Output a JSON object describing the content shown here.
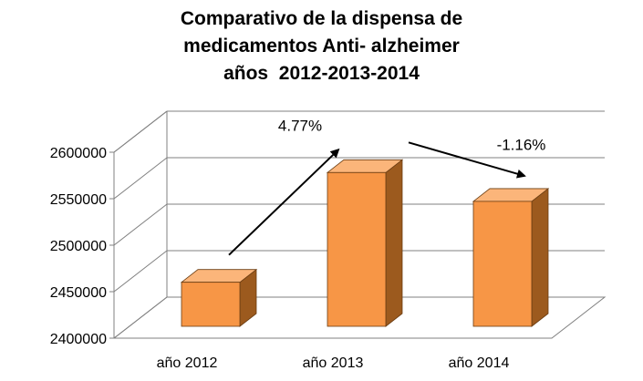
{
  "chart_data": {
    "type": "bar",
    "title_lines": [
      "Comparativo de la dispensa de",
      "medicamentos Anti- alzheimer",
      "años  2012-2013-2014"
    ],
    "categories": [
      "año 2012",
      "año 2013",
      "año 2014"
    ],
    "values": [
      2466000,
      2584000,
      2553000
    ],
    "ylim": [
      2400000,
      2600000
    ],
    "yticks": [
      2400000,
      2450000,
      2500000,
      2550000,
      2600000
    ],
    "ytick_labels": [
      "2400000",
      "2450000",
      "2500000",
      "2550000",
      "2600000"
    ],
    "style_3d": true,
    "grid": true,
    "annotations": [
      {
        "text": "4.77%",
        "between": [
          "año 2012",
          "año 2013"
        ],
        "arrow": "up"
      },
      {
        "text": "-1.16%",
        "between": [
          "año 2013",
          "año 2014"
        ],
        "arrow": "down"
      }
    ],
    "colors": {
      "bar_front": "#F79646",
      "bar_side": "#9C5A1E",
      "bar_top": "#FBB57A",
      "grid": "#808080"
    }
  }
}
